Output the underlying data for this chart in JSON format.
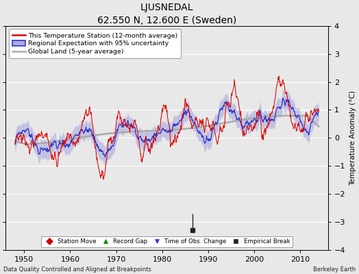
{
  "title": "LJUSNEDAL",
  "subtitle": "62.550 N, 12.600 E (Sweden)",
  "ylabel": "Temperature Anomaly (°C)",
  "xlim": [
    1946,
    2016
  ],
  "ylim": [
    -4,
    4
  ],
  "yticks": [
    -4,
    -3,
    -2,
    -1,
    0,
    1,
    2,
    3,
    4
  ],
  "xticks": [
    1950,
    1960,
    1970,
    1980,
    1990,
    2000,
    2010
  ],
  "background_color": "#e8e8e8",
  "grid_color": "#ffffff",
  "station_color": "#dd0000",
  "regional_color": "#3333cc",
  "regional_fill": "#aaaadd",
  "global_color": "#aaaaaa",
  "footer_left": "Data Quality Controlled and Aligned at Breakpoints",
  "footer_right": "Berkeley Earth",
  "legend_entries": [
    "This Temperature Station (12-month average)",
    "Regional Expectation with 95% uncertainty",
    "Global Land (5-year average)"
  ],
  "marker_legend": [
    {
      "label": "Station Move",
      "color": "#cc0000",
      "marker": "D"
    },
    {
      "label": "Record Gap",
      "color": "#008800",
      "marker": "^"
    },
    {
      "label": "Time of Obs. Change",
      "color": "#3333cc",
      "marker": "v"
    },
    {
      "label": "Empirical Break",
      "color": "#222222",
      "marker": "s"
    }
  ],
  "empirical_break_year": 1986.5,
  "empirical_break_value": -3.3,
  "empirical_break_line_top": -2.7
}
